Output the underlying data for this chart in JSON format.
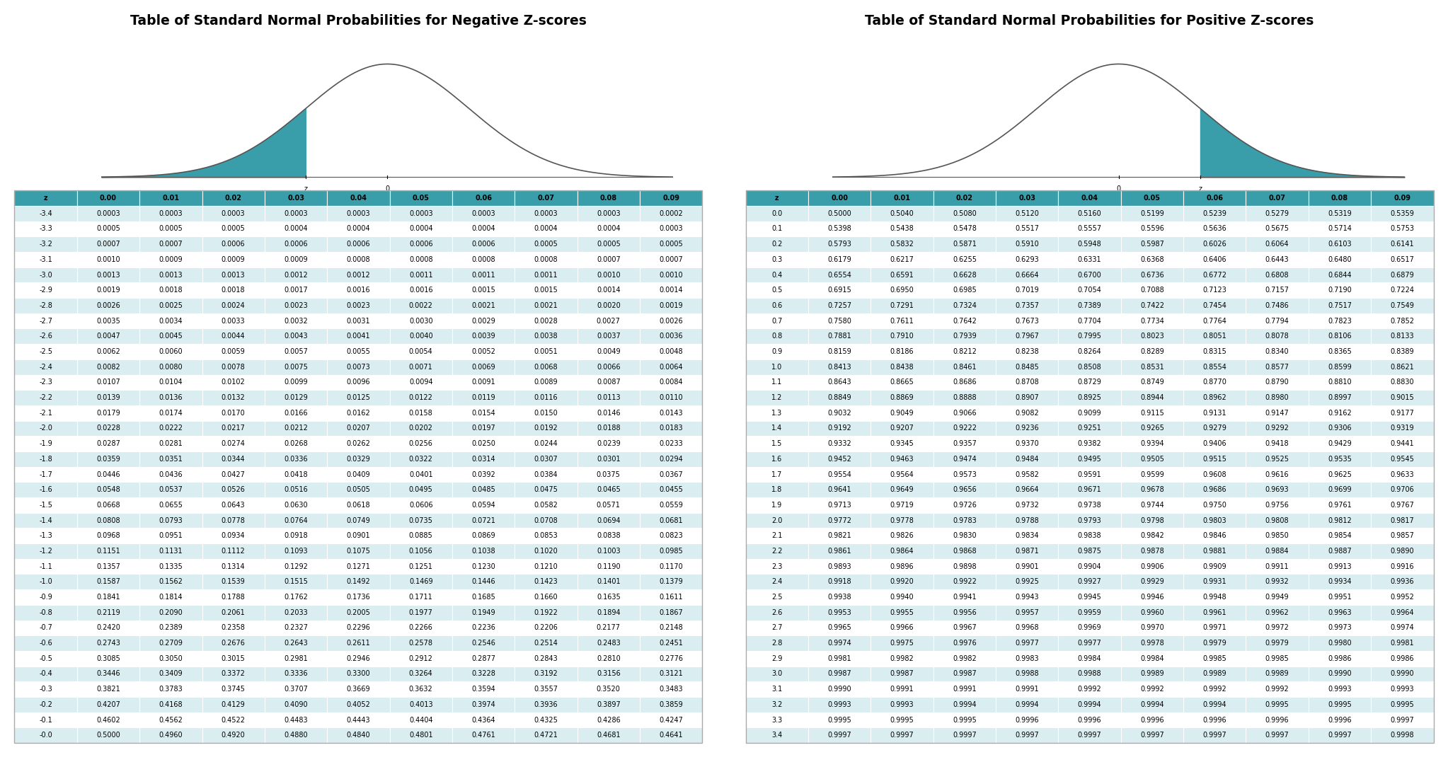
{
  "title_neg": "Table of Standard Normal Probabilities for Negative Z-scores",
  "title_pos": "Table of Standard Normal Probabilities for Positive Z-scores",
  "bg_color": "#ffffff",
  "teal_color": "#3a9eaa",
  "teal_light": "#daeef1",
  "col_headers": [
    "z",
    "0.00",
    "0.01",
    "0.02",
    "0.03",
    "0.04",
    "0.05",
    "0.06",
    "0.07",
    "0.08",
    "0.09"
  ],
  "neg_z_rows": [
    [
      -3.4,
      0.0003,
      0.0003,
      0.0003,
      0.0003,
      0.0003,
      0.0003,
      0.0003,
      0.0003,
      0.0003,
      0.0002
    ],
    [
      -3.3,
      0.0005,
      0.0005,
      0.0005,
      0.0004,
      0.0004,
      0.0004,
      0.0004,
      0.0004,
      0.0004,
      0.0003
    ],
    [
      -3.2,
      0.0007,
      0.0007,
      0.0006,
      0.0006,
      0.0006,
      0.0006,
      0.0006,
      0.0005,
      0.0005,
      0.0005
    ],
    [
      -3.1,
      0.001,
      0.0009,
      0.0009,
      0.0009,
      0.0008,
      0.0008,
      0.0008,
      0.0008,
      0.0007,
      0.0007
    ],
    [
      -3.0,
      0.0013,
      0.0013,
      0.0013,
      0.0012,
      0.0012,
      0.0011,
      0.0011,
      0.0011,
      0.001,
      0.001
    ],
    [
      -2.9,
      0.0019,
      0.0018,
      0.0018,
      0.0017,
      0.0016,
      0.0016,
      0.0015,
      0.0015,
      0.0014,
      0.0014
    ],
    [
      -2.8,
      0.0026,
      0.0025,
      0.0024,
      0.0023,
      0.0023,
      0.0022,
      0.0021,
      0.0021,
      0.002,
      0.0019
    ],
    [
      -2.7,
      0.0035,
      0.0034,
      0.0033,
      0.0032,
      0.0031,
      0.003,
      0.0029,
      0.0028,
      0.0027,
      0.0026
    ],
    [
      -2.6,
      0.0047,
      0.0045,
      0.0044,
      0.0043,
      0.0041,
      0.004,
      0.0039,
      0.0038,
      0.0037,
      0.0036
    ],
    [
      -2.5,
      0.0062,
      0.006,
      0.0059,
      0.0057,
      0.0055,
      0.0054,
      0.0052,
      0.0051,
      0.0049,
      0.0048
    ],
    [
      -2.4,
      0.0082,
      0.008,
      0.0078,
      0.0075,
      0.0073,
      0.0071,
      0.0069,
      0.0068,
      0.0066,
      0.0064
    ],
    [
      -2.3,
      0.0107,
      0.0104,
      0.0102,
      0.0099,
      0.0096,
      0.0094,
      0.0091,
      0.0089,
      0.0087,
      0.0084
    ],
    [
      -2.2,
      0.0139,
      0.0136,
      0.0132,
      0.0129,
      0.0125,
      0.0122,
      0.0119,
      0.0116,
      0.0113,
      0.011
    ],
    [
      -2.1,
      0.0179,
      0.0174,
      0.017,
      0.0166,
      0.0162,
      0.0158,
      0.0154,
      0.015,
      0.0146,
      0.0143
    ],
    [
      -2.0,
      0.0228,
      0.0222,
      0.0217,
      0.0212,
      0.0207,
      0.0202,
      0.0197,
      0.0192,
      0.0188,
      0.0183
    ],
    [
      -1.9,
      0.0287,
      0.0281,
      0.0274,
      0.0268,
      0.0262,
      0.0256,
      0.025,
      0.0244,
      0.0239,
      0.0233
    ],
    [
      -1.8,
      0.0359,
      0.0351,
      0.0344,
      0.0336,
      0.0329,
      0.0322,
      0.0314,
      0.0307,
      0.0301,
      0.0294
    ],
    [
      -1.7,
      0.0446,
      0.0436,
      0.0427,
      0.0418,
      0.0409,
      0.0401,
      0.0392,
      0.0384,
      0.0375,
      0.0367
    ],
    [
      -1.6,
      0.0548,
      0.0537,
      0.0526,
      0.0516,
      0.0505,
      0.0495,
      0.0485,
      0.0475,
      0.0465,
      0.0455
    ],
    [
      -1.5,
      0.0668,
      0.0655,
      0.0643,
      0.063,
      0.0618,
      0.0606,
      0.0594,
      0.0582,
      0.0571,
      0.0559
    ],
    [
      -1.4,
      0.0808,
      0.0793,
      0.0778,
      0.0764,
      0.0749,
      0.0735,
      0.0721,
      0.0708,
      0.0694,
      0.0681
    ],
    [
      -1.3,
      0.0968,
      0.0951,
      0.0934,
      0.0918,
      0.0901,
      0.0885,
      0.0869,
      0.0853,
      0.0838,
      0.0823
    ],
    [
      -1.2,
      0.1151,
      0.1131,
      0.1112,
      0.1093,
      0.1075,
      0.1056,
      0.1038,
      0.102,
      0.1003,
      0.0985
    ],
    [
      -1.1,
      0.1357,
      0.1335,
      0.1314,
      0.1292,
      0.1271,
      0.1251,
      0.123,
      0.121,
      0.119,
      0.117
    ],
    [
      -1.0,
      0.1587,
      0.1562,
      0.1539,
      0.1515,
      0.1492,
      0.1469,
      0.1446,
      0.1423,
      0.1401,
      0.1379
    ],
    [
      -0.9,
      0.1841,
      0.1814,
      0.1788,
      0.1762,
      0.1736,
      0.1711,
      0.1685,
      0.166,
      0.1635,
      0.1611
    ],
    [
      -0.8,
      0.2119,
      0.209,
      0.2061,
      0.2033,
      0.2005,
      0.1977,
      0.1949,
      0.1922,
      0.1894,
      0.1867
    ],
    [
      -0.7,
      0.242,
      0.2389,
      0.2358,
      0.2327,
      0.2296,
      0.2266,
      0.2236,
      0.2206,
      0.2177,
      0.2148
    ],
    [
      -0.6,
      0.2743,
      0.2709,
      0.2676,
      0.2643,
      0.2611,
      0.2578,
      0.2546,
      0.2514,
      0.2483,
      0.2451
    ],
    [
      -0.5,
      0.3085,
      0.305,
      0.3015,
      0.2981,
      0.2946,
      0.2912,
      0.2877,
      0.2843,
      0.281,
      0.2776
    ],
    [
      -0.4,
      0.3446,
      0.3409,
      0.3372,
      0.3336,
      0.33,
      0.3264,
      0.3228,
      0.3192,
      0.3156,
      0.3121
    ],
    [
      -0.3,
      0.3821,
      0.3783,
      0.3745,
      0.3707,
      0.3669,
      0.3632,
      0.3594,
      0.3557,
      0.352,
      0.3483
    ],
    [
      -0.2,
      0.4207,
      0.4168,
      0.4129,
      0.409,
      0.4052,
      0.4013,
      0.3974,
      0.3936,
      0.3897,
      0.3859
    ],
    [
      -0.1,
      0.4602,
      0.4562,
      0.4522,
      0.4483,
      0.4443,
      0.4404,
      0.4364,
      0.4325,
      0.4286,
      0.4247
    ],
    [
      -0.0,
      0.5,
      0.496,
      0.492,
      0.488,
      0.484,
      0.4801,
      0.4761,
      0.4721,
      0.4681,
      0.4641
    ]
  ],
  "pos_z_rows": [
    [
      0.0,
      0.5,
      0.504,
      0.508,
      0.512,
      0.516,
      0.5199,
      0.5239,
      0.5279,
      0.5319,
      0.5359
    ],
    [
      0.1,
      0.5398,
      0.5438,
      0.5478,
      0.5517,
      0.5557,
      0.5596,
      0.5636,
      0.5675,
      0.5714,
      0.5753
    ],
    [
      0.2,
      0.5793,
      0.5832,
      0.5871,
      0.591,
      0.5948,
      0.5987,
      0.6026,
      0.6064,
      0.6103,
      0.6141
    ],
    [
      0.3,
      0.6179,
      0.6217,
      0.6255,
      0.6293,
      0.6331,
      0.6368,
      0.6406,
      0.6443,
      0.648,
      0.6517
    ],
    [
      0.4,
      0.6554,
      0.6591,
      0.6628,
      0.6664,
      0.67,
      0.6736,
      0.6772,
      0.6808,
      0.6844,
      0.6879
    ],
    [
      0.5,
      0.6915,
      0.695,
      0.6985,
      0.7019,
      0.7054,
      0.7088,
      0.7123,
      0.7157,
      0.719,
      0.7224
    ],
    [
      0.6,
      0.7257,
      0.7291,
      0.7324,
      0.7357,
      0.7389,
      0.7422,
      0.7454,
      0.7486,
      0.7517,
      0.7549
    ],
    [
      0.7,
      0.758,
      0.7611,
      0.7642,
      0.7673,
      0.7704,
      0.7734,
      0.7764,
      0.7794,
      0.7823,
      0.7852
    ],
    [
      0.8,
      0.7881,
      0.791,
      0.7939,
      0.7967,
      0.7995,
      0.8023,
      0.8051,
      0.8078,
      0.8106,
      0.8133
    ],
    [
      0.9,
      0.8159,
      0.8186,
      0.8212,
      0.8238,
      0.8264,
      0.8289,
      0.8315,
      0.834,
      0.8365,
      0.8389
    ],
    [
      1.0,
      0.8413,
      0.8438,
      0.8461,
      0.8485,
      0.8508,
      0.8531,
      0.8554,
      0.8577,
      0.8599,
      0.8621
    ],
    [
      1.1,
      0.8643,
      0.8665,
      0.8686,
      0.8708,
      0.8729,
      0.8749,
      0.877,
      0.879,
      0.881,
      0.883
    ],
    [
      1.2,
      0.8849,
      0.8869,
      0.8888,
      0.8907,
      0.8925,
      0.8944,
      0.8962,
      0.898,
      0.8997,
      0.9015
    ],
    [
      1.3,
      0.9032,
      0.9049,
      0.9066,
      0.9082,
      0.9099,
      0.9115,
      0.9131,
      0.9147,
      0.9162,
      0.9177
    ],
    [
      1.4,
      0.9192,
      0.9207,
      0.9222,
      0.9236,
      0.9251,
      0.9265,
      0.9279,
      0.9292,
      0.9306,
      0.9319
    ],
    [
      1.5,
      0.9332,
      0.9345,
      0.9357,
      0.937,
      0.9382,
      0.9394,
      0.9406,
      0.9418,
      0.9429,
      0.9441
    ],
    [
      1.6,
      0.9452,
      0.9463,
      0.9474,
      0.9484,
      0.9495,
      0.9505,
      0.9515,
      0.9525,
      0.9535,
      0.9545
    ],
    [
      1.7,
      0.9554,
      0.9564,
      0.9573,
      0.9582,
      0.9591,
      0.9599,
      0.9608,
      0.9616,
      0.9625,
      0.9633
    ],
    [
      1.8,
      0.9641,
      0.9649,
      0.9656,
      0.9664,
      0.9671,
      0.9678,
      0.9686,
      0.9693,
      0.9699,
      0.9706
    ],
    [
      1.9,
      0.9713,
      0.9719,
      0.9726,
      0.9732,
      0.9738,
      0.9744,
      0.975,
      0.9756,
      0.9761,
      0.9767
    ],
    [
      2.0,
      0.9772,
      0.9778,
      0.9783,
      0.9788,
      0.9793,
      0.9798,
      0.9803,
      0.9808,
      0.9812,
      0.9817
    ],
    [
      2.1,
      0.9821,
      0.9826,
      0.983,
      0.9834,
      0.9838,
      0.9842,
      0.9846,
      0.985,
      0.9854,
      0.9857
    ],
    [
      2.2,
      0.9861,
      0.9864,
      0.9868,
      0.9871,
      0.9875,
      0.9878,
      0.9881,
      0.9884,
      0.9887,
      0.989
    ],
    [
      2.3,
      0.9893,
      0.9896,
      0.9898,
      0.9901,
      0.9904,
      0.9906,
      0.9909,
      0.9911,
      0.9913,
      0.9916
    ],
    [
      2.4,
      0.9918,
      0.992,
      0.9922,
      0.9925,
      0.9927,
      0.9929,
      0.9931,
      0.9932,
      0.9934,
      0.9936
    ],
    [
      2.5,
      0.9938,
      0.994,
      0.9941,
      0.9943,
      0.9945,
      0.9946,
      0.9948,
      0.9949,
      0.9951,
      0.9952
    ],
    [
      2.6,
      0.9953,
      0.9955,
      0.9956,
      0.9957,
      0.9959,
      0.996,
      0.9961,
      0.9962,
      0.9963,
      0.9964
    ],
    [
      2.7,
      0.9965,
      0.9966,
      0.9967,
      0.9968,
      0.9969,
      0.997,
      0.9971,
      0.9972,
      0.9973,
      0.9974
    ],
    [
      2.8,
      0.9974,
      0.9975,
      0.9976,
      0.9977,
      0.9977,
      0.9978,
      0.9979,
      0.9979,
      0.998,
      0.9981
    ],
    [
      2.9,
      0.9981,
      0.9982,
      0.9982,
      0.9983,
      0.9984,
      0.9984,
      0.9985,
      0.9985,
      0.9986,
      0.9986
    ],
    [
      3.0,
      0.9987,
      0.9987,
      0.9987,
      0.9988,
      0.9988,
      0.9989,
      0.9989,
      0.9989,
      0.999,
      0.999
    ],
    [
      3.1,
      0.999,
      0.9991,
      0.9991,
      0.9991,
      0.9992,
      0.9992,
      0.9992,
      0.9992,
      0.9993,
      0.9993
    ],
    [
      3.2,
      0.9993,
      0.9993,
      0.9994,
      0.9994,
      0.9994,
      0.9994,
      0.9994,
      0.9995,
      0.9995,
      0.9995
    ],
    [
      3.3,
      0.9995,
      0.9995,
      0.9995,
      0.9996,
      0.9996,
      0.9996,
      0.9996,
      0.9996,
      0.9996,
      0.9997
    ],
    [
      3.4,
      0.9997,
      0.9997,
      0.9997,
      0.9997,
      0.9997,
      0.9997,
      0.9997,
      0.9997,
      0.9997,
      0.9998
    ]
  ]
}
